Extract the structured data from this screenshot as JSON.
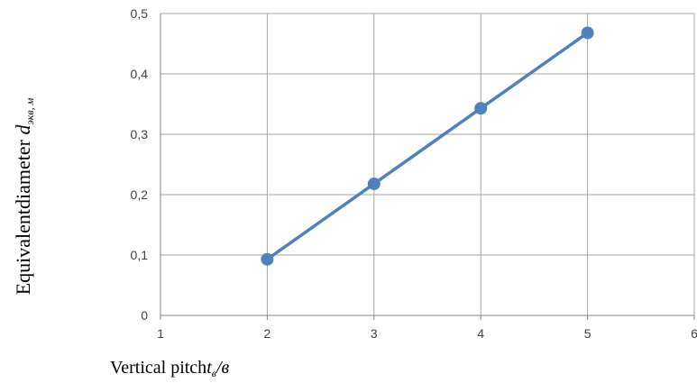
{
  "chart_data": {
    "type": "line",
    "title": "",
    "x": [
      2,
      3,
      4,
      5
    ],
    "series": [
      {
        "values": [
          0.093,
          0.218,
          0.343,
          0.468
        ],
        "color": "#4f81bd"
      }
    ],
    "xlim": [
      1,
      6
    ],
    "ylim": [
      0,
      0.5
    ],
    "x_ticks": [
      "1",
      "2",
      "3",
      "4",
      "5",
      "6"
    ],
    "y_ticks": [
      "0",
      "0,1",
      "0,2",
      "0,3",
      "0,4",
      "0,5"
    ],
    "ylabel": {
      "main": "Equivalentdiameter ",
      "symbol": "d",
      "subscript": "экв",
      "unit": ", м"
    },
    "xlabel": {
      "main": "Vertical pitch",
      "symbol": "t",
      "subscript": "в",
      "unit": "/в"
    },
    "grid": true,
    "legend": "none",
    "grid_color": "#a6a6a6",
    "axis_color": "#868686"
  }
}
